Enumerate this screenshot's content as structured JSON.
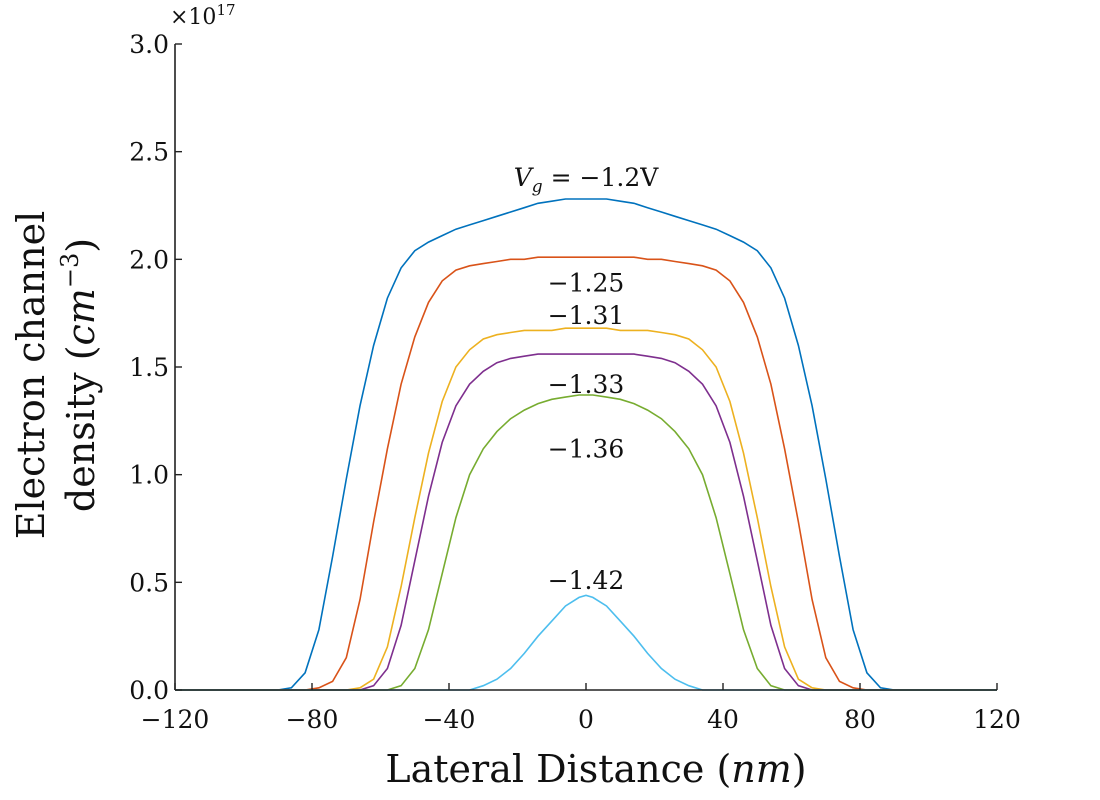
{
  "chart_data": {
    "type": "line",
    "title": "",
    "xlabel": "Lateral Distance",
    "xlabel_unit": "nm",
    "ylabel_line1": "Electron channel",
    "ylabel_line2": "density",
    "ylabel_unit_base": "cm",
    "ylabel_unit_exp": "−3",
    "y_multiplier_base": "×10",
    "y_multiplier_exp": "17",
    "xlim": [
      -120,
      120
    ],
    "ylim": [
      0,
      3.0
    ],
    "xticks": [
      -120,
      -80,
      -40,
      0,
      40,
      80,
      120
    ],
    "xtick_labels": [
      "−120",
      "−80",
      "−40",
      "0",
      "40",
      "80",
      "120"
    ],
    "yticks": [
      0,
      0.5,
      1.0,
      1.5,
      2.0,
      2.5,
      3.0
    ],
    "ytick_labels": [
      "0.0",
      "0.5",
      "1.0",
      "1.5",
      "2.0",
      "2.5",
      "3.0"
    ],
    "grid": false,
    "x": [
      -120,
      -90,
      -86,
      -82,
      -78,
      -74,
      -70,
      -66,
      -62,
      -58,
      -54,
      -50,
      -46,
      -42,
      -38,
      -34,
      -30,
      -26,
      -22,
      -18,
      -14,
      -10,
      -6,
      -2,
      0,
      2,
      6,
      10,
      14,
      18,
      22,
      26,
      30,
      34,
      38,
      42,
      46,
      50,
      54,
      58,
      62,
      66,
      70,
      74,
      78,
      82,
      86,
      90,
      120
    ],
    "series": [
      {
        "name": "-1.2",
        "label_prefix": "V",
        "label_sub": "g",
        "label_rest": " = −1.2V",
        "color": "#0072BD",
        "values": [
          0,
          0,
          0.01,
          0.08,
          0.28,
          0.62,
          0.98,
          1.32,
          1.6,
          1.82,
          1.96,
          2.04,
          2.08,
          2.11,
          2.14,
          2.16,
          2.18,
          2.2,
          2.22,
          2.24,
          2.26,
          2.27,
          2.28,
          2.28,
          2.28,
          2.28,
          2.28,
          2.27,
          2.26,
          2.24,
          2.22,
          2.2,
          2.18,
          2.16,
          2.14,
          2.11,
          2.08,
          2.04,
          1.96,
          1.82,
          1.6,
          1.32,
          0.98,
          0.62,
          0.28,
          0.08,
          0.01,
          0,
          0
        ]
      },
      {
        "name": "-1.25",
        "label": "−1.25",
        "color": "#D95319",
        "values": [
          0,
          0,
          0,
          0,
          0.01,
          0.04,
          0.15,
          0.42,
          0.78,
          1.12,
          1.42,
          1.64,
          1.8,
          1.9,
          1.95,
          1.97,
          1.98,
          1.99,
          2.0,
          2.0,
          2.01,
          2.01,
          2.01,
          2.01,
          2.01,
          2.01,
          2.01,
          2.01,
          2.01,
          2.0,
          2.0,
          1.99,
          1.98,
          1.97,
          1.95,
          1.9,
          1.8,
          1.64,
          1.42,
          1.12,
          0.78,
          0.42,
          0.15,
          0.04,
          0.01,
          0,
          0,
          0,
          0
        ]
      },
      {
        "name": "-1.31",
        "label": "−1.31",
        "color": "#EDB120",
        "values": [
          0,
          0,
          0,
          0,
          0,
          0,
          0,
          0.01,
          0.05,
          0.2,
          0.48,
          0.8,
          1.1,
          1.34,
          1.5,
          1.58,
          1.63,
          1.65,
          1.66,
          1.67,
          1.67,
          1.67,
          1.68,
          1.68,
          1.68,
          1.68,
          1.68,
          1.67,
          1.67,
          1.67,
          1.66,
          1.65,
          1.63,
          1.58,
          1.5,
          1.34,
          1.1,
          0.8,
          0.48,
          0.2,
          0.05,
          0.01,
          0,
          0,
          0,
          0,
          0,
          0,
          0
        ]
      },
      {
        "name": "-1.33",
        "label": "−1.33",
        "color": "#7E2F8E",
        "values": [
          0,
          0,
          0,
          0,
          0,
          0,
          0,
          0,
          0.02,
          0.1,
          0.3,
          0.6,
          0.9,
          1.15,
          1.32,
          1.42,
          1.48,
          1.52,
          1.54,
          1.55,
          1.56,
          1.56,
          1.56,
          1.56,
          1.56,
          1.56,
          1.56,
          1.56,
          1.56,
          1.55,
          1.54,
          1.52,
          1.48,
          1.42,
          1.32,
          1.15,
          0.9,
          0.6,
          0.3,
          0.1,
          0.02,
          0,
          0,
          0,
          0,
          0,
          0,
          0,
          0
        ]
      },
      {
        "name": "-1.36",
        "label": "−1.36",
        "color": "#77AC30",
        "values": [
          0,
          0,
          0,
          0,
          0,
          0,
          0,
          0,
          0,
          0,
          0.02,
          0.1,
          0.28,
          0.54,
          0.8,
          1.0,
          1.12,
          1.2,
          1.26,
          1.3,
          1.33,
          1.35,
          1.36,
          1.37,
          1.37,
          1.37,
          1.36,
          1.35,
          1.33,
          1.3,
          1.26,
          1.2,
          1.12,
          1.0,
          0.8,
          0.54,
          0.28,
          0.1,
          0.02,
          0,
          0,
          0,
          0,
          0,
          0,
          0,
          0,
          0,
          0
        ]
      },
      {
        "name": "-1.42",
        "label": "−1.42",
        "color": "#4DBEEE",
        "values": [
          0,
          0,
          0,
          0,
          0,
          0,
          0,
          0,
          0,
          0,
          0,
          0,
          0,
          0,
          0,
          0,
          0.02,
          0.05,
          0.1,
          0.17,
          0.25,
          0.32,
          0.39,
          0.43,
          0.44,
          0.43,
          0.39,
          0.32,
          0.25,
          0.17,
          0.1,
          0.05,
          0.02,
          0,
          0,
          0,
          0,
          0,
          0,
          0,
          0,
          0,
          0,
          0,
          0,
          0,
          0,
          0,
          0
        ]
      }
    ],
    "annotations": [
      {
        "series": "-1.2",
        "x": 0,
        "y": 2.34
      },
      {
        "series": "-1.25",
        "x": 0,
        "y": 1.85
      },
      {
        "series": "-1.31",
        "x": 0,
        "y": 1.7
      },
      {
        "series": "-1.33",
        "x": 0,
        "y": 1.38
      },
      {
        "series": "-1.36",
        "x": 0,
        "y": 1.08
      },
      {
        "series": "-1.42",
        "x": 0,
        "y": 0.47
      }
    ]
  }
}
